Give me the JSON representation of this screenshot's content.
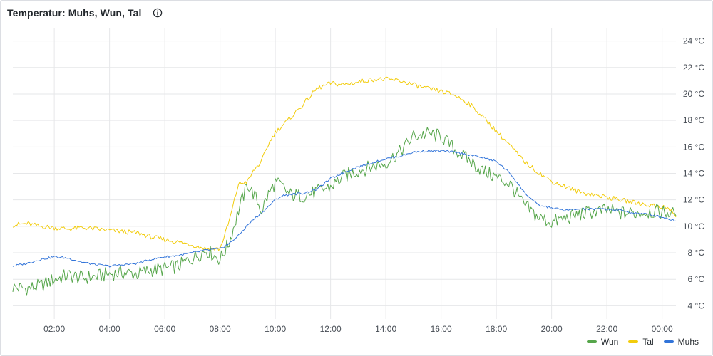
{
  "panel": {
    "title": "Temperatur: Muhs, Wun, Tal",
    "info_icon": "info-circle-icon"
  },
  "colors": {
    "Wun": "#56a64b",
    "Tal": "#f2cc0c",
    "Muhs": "#3274d9",
    "grid": "#e6e7e9",
    "axis_text": "#464c54"
  },
  "chart_data": {
    "type": "line",
    "title": "Temperatur: Muhs, Wun, Tal",
    "xlabel": "",
    "ylabel": "",
    "x_ticks": [
      "02:00",
      "04:00",
      "06:00",
      "08:00",
      "10:00",
      "12:00",
      "14:00",
      "16:00",
      "18:00",
      "20:00",
      "22:00",
      "00:00"
    ],
    "y_ticks": [
      "4 °C",
      "6 °C",
      "8 °C",
      "10 °C",
      "12 °C",
      "14 °C",
      "16 °C",
      "18 °C",
      "20 °C",
      "22 °C",
      "24 °C"
    ],
    "y_unit": "°C",
    "xlim": [
      "00:30",
      "00:30"
    ],
    "ylim": [
      3,
      25
    ],
    "grid": true,
    "legend_position": "bottom-right",
    "x": [
      "00:30",
      "01:00",
      "01:30",
      "02:00",
      "02:30",
      "03:00",
      "03:30",
      "04:00",
      "04:30",
      "05:00",
      "05:30",
      "06:00",
      "06:30",
      "07:00",
      "07:30",
      "08:00",
      "08:20",
      "08:40",
      "09:00",
      "09:15",
      "09:30",
      "09:45",
      "10:00",
      "10:15",
      "10:30",
      "11:00",
      "11:30",
      "12:00",
      "12:30",
      "13:00",
      "13:30",
      "14:00",
      "14:30",
      "15:00",
      "15:30",
      "16:00",
      "16:30",
      "17:00",
      "17:30",
      "18:00",
      "18:30",
      "19:00",
      "19:30",
      "20:00",
      "20:30",
      "21:00",
      "21:30",
      "22:00",
      "22:30",
      "23:00",
      "23:30",
      "00:00",
      "00:20",
      "00:30"
    ],
    "series": [
      {
        "name": "Wun",
        "values": [
          5.4,
          5.3,
          5.5,
          6.0,
          6.3,
          6.1,
          6.2,
          6.4,
          6.5,
          6.4,
          6.7,
          6.8,
          7.0,
          7.6,
          8.2,
          7.5,
          8.8,
          11.2,
          13.2,
          12.3,
          11.2,
          12.4,
          13.3,
          13.0,
          12.4,
          12.3,
          12.6,
          13.0,
          13.8,
          14.2,
          14.5,
          14.8,
          15.6,
          16.8,
          17.0,
          16.8,
          15.8,
          15.0,
          14.2,
          13.7,
          13.2,
          11.6,
          10.7,
          10.3,
          10.6,
          10.9,
          11.1,
          11.2,
          11.0,
          11.0,
          11.1,
          11.1,
          11.0,
          10.8
        ]
      },
      {
        "name": "Tal",
        "values": [
          10.1,
          10.2,
          10.0,
          9.9,
          9.8,
          9.9,
          9.8,
          9.7,
          9.6,
          9.5,
          9.2,
          9.0,
          8.8,
          8.6,
          8.3,
          8.3,
          10.4,
          13.2,
          13.4,
          14.3,
          14.9,
          16.2,
          17.1,
          17.6,
          18.1,
          19.2,
          20.4,
          20.8,
          20.7,
          20.9,
          21.1,
          21.1,
          21.0,
          20.7,
          20.4,
          20.2,
          19.9,
          19.3,
          18.3,
          17.2,
          16.1,
          14.9,
          14.1,
          13.4,
          13.0,
          12.6,
          12.4,
          12.2,
          12.0,
          11.8,
          11.6,
          11.5,
          11.2,
          10.7
        ]
      },
      {
        "name": "Muhs",
        "values": [
          7.0,
          7.2,
          7.5,
          7.7,
          7.6,
          7.3,
          7.1,
          7.0,
          7.1,
          7.2,
          7.5,
          7.7,
          7.8,
          8.0,
          8.2,
          8.3,
          8.7,
          9.3,
          10.1,
          10.6,
          11.0,
          11.5,
          12.0,
          12.3,
          12.4,
          12.5,
          12.8,
          13.6,
          14.1,
          14.5,
          14.8,
          15.1,
          15.3,
          15.6,
          15.7,
          15.7,
          15.6,
          15.4,
          15.2,
          14.9,
          14.0,
          12.6,
          11.6,
          11.4,
          11.2,
          11.3,
          11.3,
          11.3,
          11.2,
          11.0,
          10.9,
          10.7,
          10.5,
          10.4
        ]
      }
    ]
  }
}
